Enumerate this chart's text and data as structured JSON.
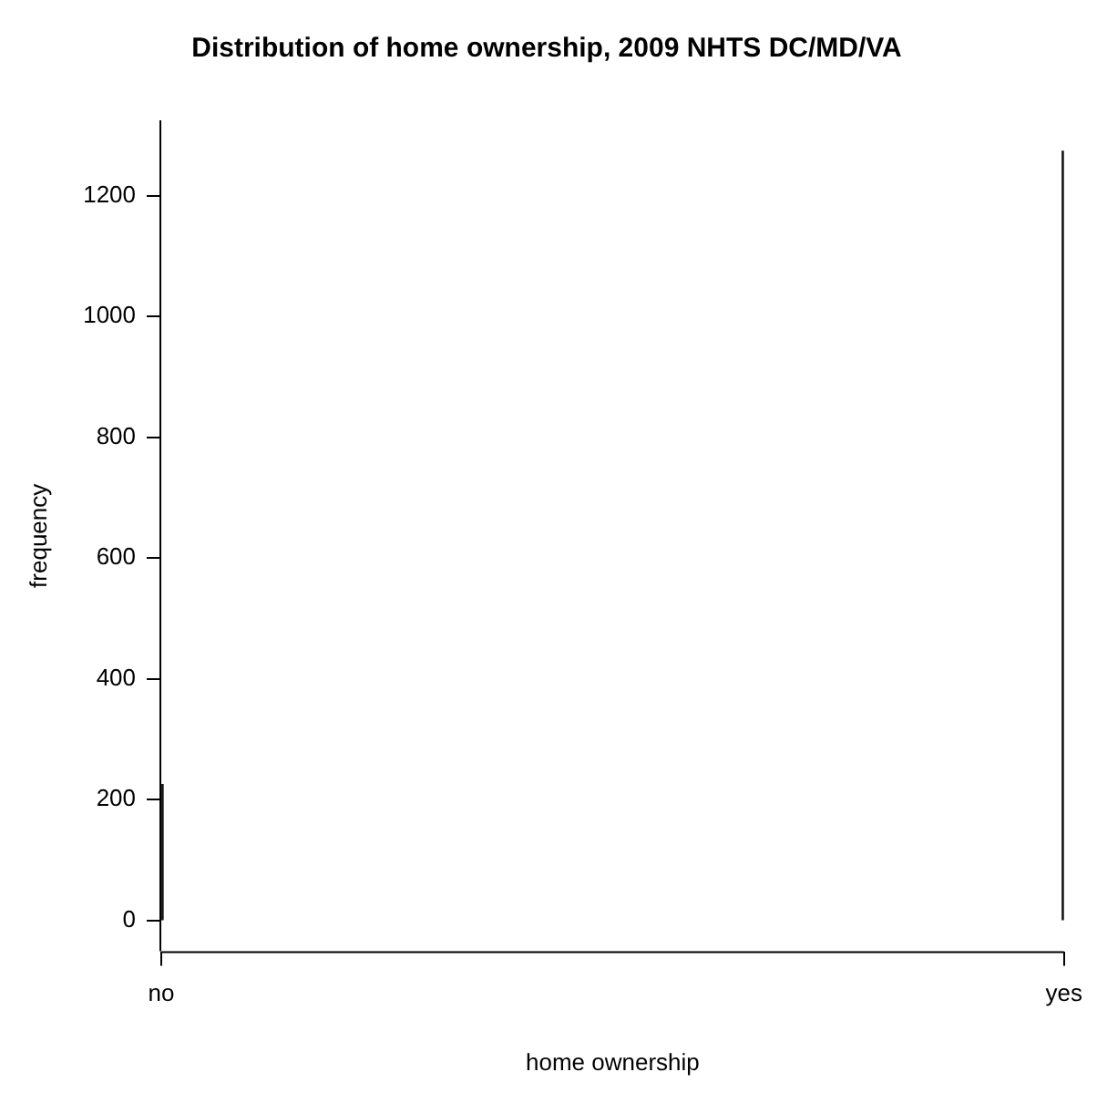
{
  "chart_data": {
    "type": "bar",
    "title": "Distribution of home ownership, 2009 NHTS DC/MD/VA",
    "xlabel": "home ownership",
    "ylabel": "frequency",
    "categories": [
      "no",
      "yes"
    ],
    "values": [
      225,
      1274
    ],
    "color": "#1a1a1a",
    "ylim": [
      -51,
      1325
    ],
    "yticks": [
      0,
      200,
      400,
      600,
      800,
      1000,
      1200
    ],
    "grid": false,
    "legend": false
  }
}
